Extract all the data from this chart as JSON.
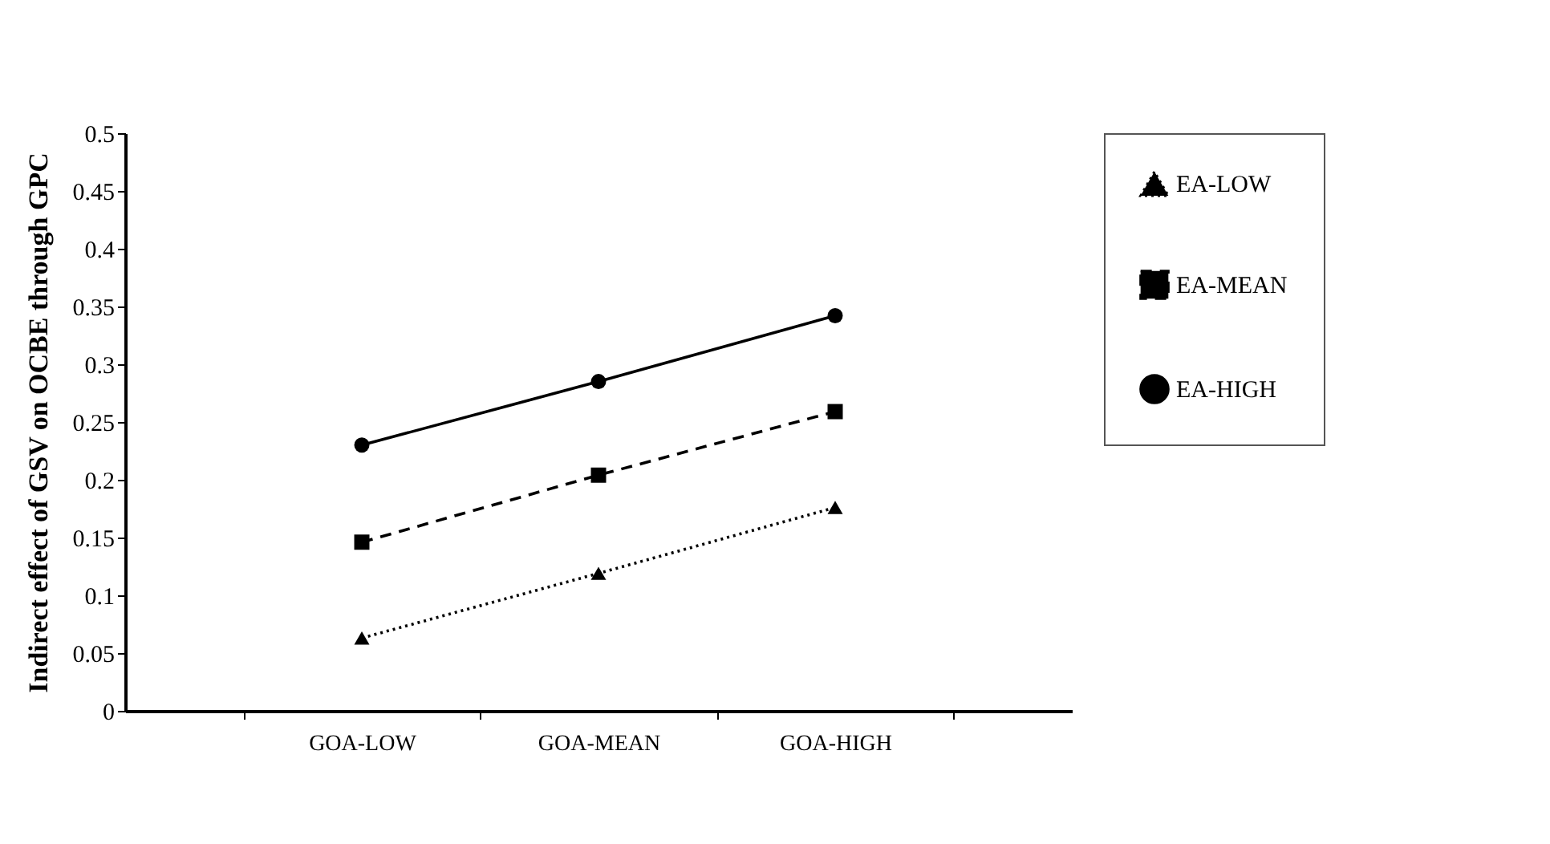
{
  "chart_data": {
    "type": "line",
    "ylabel": "Indirect  effect of GSV on OCBE through GPC",
    "categories": [
      "GOA-LOW",
      "GOA-MEAN",
      "GOA-HIGH"
    ],
    "series": [
      {
        "name": "EA-LOW",
        "color": "#000000",
        "marker": "triangle",
        "line_style": "dotted",
        "values": [
          0.063,
          0.119,
          0.176
        ]
      },
      {
        "name": "EA-MEAN",
        "color": "#000000",
        "marker": "square",
        "line_style": "dashed",
        "values": [
          0.146,
          0.204,
          0.259
        ]
      },
      {
        "name": "EA-HIGH",
        "color": "#000000",
        "marker": "circle",
        "line_style": "solid",
        "values": [
          0.23,
          0.285,
          0.342
        ]
      }
    ],
    "ylim": [
      0,
      0.5
    ],
    "yticks": [
      0,
      0.05,
      0.1,
      0.15,
      0.2,
      0.25,
      0.3,
      0.35,
      0.4,
      0.45,
      0.5
    ],
    "grid": false,
    "legend": "right"
  }
}
